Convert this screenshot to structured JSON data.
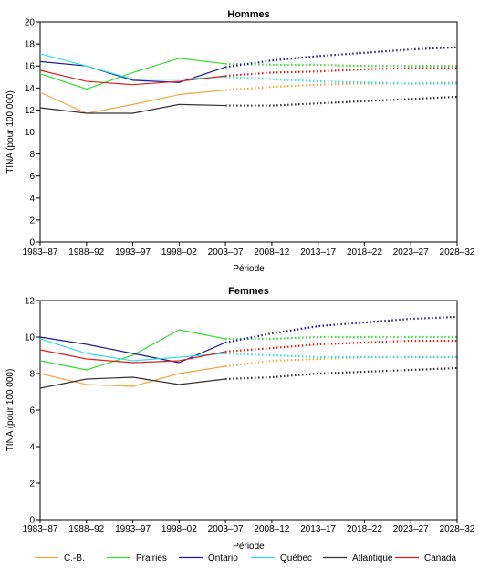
{
  "legend": {
    "placement": "bottom",
    "items": [
      {
        "label": "C.-B.",
        "color": "#f5a640"
      },
      {
        "label": "Prairies",
        "color": "#33e033"
      },
      {
        "label": "Ontario",
        "color": "#1a1aa0"
      },
      {
        "label": "Québec",
        "color": "#33e0e8"
      },
      {
        "label": "Atlantique",
        "color": "#333333"
      },
      {
        "label": "Canada",
        "color": "#e02020"
      }
    ]
  },
  "chart_data": [
    {
      "type": "line",
      "title": "Hommes",
      "xlabel": "Période",
      "ylabel": "TINA (pour 100 000)",
      "categories": [
        "1983–87",
        "1988–92",
        "1993–97",
        "1998–02",
        "2003–07",
        "2008–12",
        "2013–17",
        "2018–22",
        "2023–27",
        "2028–32"
      ],
      "ylim": [
        0,
        20
      ],
      "yticks": [
        0,
        2,
        4,
        6,
        8,
        10,
        12,
        14,
        16,
        18,
        20
      ],
      "grid": false,
      "observed_until_index": 4,
      "projected_style": "dotted",
      "series": [
        {
          "name": "C.-B.",
          "color": "#f5a640",
          "values": [
            13.6,
            11.7,
            12.5,
            13.4,
            13.8,
            14.1,
            14.3,
            14.4,
            14.4,
            14.5
          ]
        },
        {
          "name": "Prairies",
          "color": "#33e033",
          "values": [
            15.3,
            13.9,
            15.4,
            16.7,
            16.2,
            16.1,
            16.1,
            16.0,
            16.0,
            16.0
          ]
        },
        {
          "name": "Ontario",
          "color": "#1a1aa0",
          "values": [
            16.4,
            16.0,
            14.7,
            14.5,
            15.9,
            16.5,
            16.9,
            17.2,
            17.5,
            17.7
          ]
        },
        {
          "name": "Québec",
          "color": "#33e0e8",
          "values": [
            17.1,
            16.0,
            14.8,
            14.8,
            15.0,
            14.8,
            14.6,
            14.5,
            14.4,
            14.4
          ]
        },
        {
          "name": "Atlantique",
          "color": "#333333",
          "values": [
            12.2,
            11.7,
            11.7,
            12.5,
            12.4,
            12.4,
            12.6,
            12.8,
            13.0,
            13.2
          ]
        },
        {
          "name": "Canada",
          "color": "#e02020",
          "values": [
            15.6,
            14.6,
            14.3,
            14.6,
            15.1,
            15.4,
            15.5,
            15.7,
            15.8,
            15.8
          ]
        }
      ]
    },
    {
      "type": "line",
      "title": "Femmes",
      "xlabel": "Période",
      "ylabel": "TINA (pour 100 000)",
      "categories": [
        "1983–87",
        "1988–92",
        "1993–97",
        "1998–02",
        "2003–07",
        "2008–12",
        "2013–17",
        "2018–22",
        "2023–27",
        "2028–32"
      ],
      "ylim": [
        0,
        12
      ],
      "yticks": [
        0,
        2,
        4,
        6,
        8,
        10,
        12
      ],
      "grid": false,
      "observed_until_index": 4,
      "projected_style": "dotted",
      "series": [
        {
          "name": "C.-B.",
          "color": "#f5a640",
          "values": [
            8.0,
            7.4,
            7.3,
            8.0,
            8.4,
            8.7,
            8.8,
            8.9,
            8.9,
            8.9
          ]
        },
        {
          "name": "Prairies",
          "color": "#33e033",
          "values": [
            8.7,
            8.2,
            9.0,
            10.4,
            9.9,
            9.9,
            10.0,
            10.0,
            10.0,
            10.0
          ]
        },
        {
          "name": "Ontario",
          "color": "#1a1aa0",
          "values": [
            10.0,
            9.6,
            9.1,
            8.6,
            9.7,
            10.2,
            10.6,
            10.8,
            11.0,
            11.1
          ]
        },
        {
          "name": "Québec",
          "color": "#33e0e8",
          "values": [
            9.9,
            9.1,
            8.7,
            8.9,
            9.1,
            9.0,
            8.9,
            8.9,
            8.9,
            8.9
          ]
        },
        {
          "name": "Atlantique",
          "color": "#333333",
          "values": [
            7.2,
            7.7,
            7.8,
            7.4,
            7.7,
            7.8,
            8.0,
            8.1,
            8.2,
            8.3
          ]
        },
        {
          "name": "Canada",
          "color": "#e02020",
          "values": [
            9.3,
            8.8,
            8.6,
            8.7,
            9.2,
            9.4,
            9.6,
            9.7,
            9.8,
            9.8
          ]
        }
      ]
    }
  ]
}
